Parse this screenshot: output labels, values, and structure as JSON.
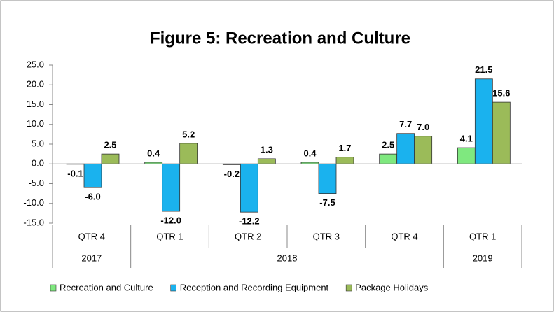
{
  "chart_data": {
    "type": "bar",
    "title": "Figure 5: Recreation and Culture",
    "categories": [
      "QTR 4",
      "QTR 1",
      "QTR 2",
      "QTR 3",
      "QTR 4",
      "QTR 1"
    ],
    "groups": [
      {
        "label": "2017",
        "count": 1
      },
      {
        "label": "2018",
        "count": 4
      },
      {
        "label": "2019",
        "count": 1
      }
    ],
    "series": [
      {
        "name": "Recreation and Culture",
        "color": "#7fe87f",
        "values": [
          -0.1,
          0.4,
          -0.2,
          0.4,
          2.5,
          4.1
        ],
        "value_labels": [
          "-0.1",
          "0.4",
          "-0.2",
          "0.4",
          "2.5",
          "4.1"
        ]
      },
      {
        "name": "Reception and Recording Equipment",
        "color": "#1ab2ee",
        "values": [
          -6.0,
          -12.0,
          -12.2,
          -7.5,
          7.7,
          21.5
        ],
        "value_labels": [
          "-6.0",
          "-12.0",
          "-12.2",
          "-7.5",
          "7.7",
          "21.5"
        ]
      },
      {
        "name": "Package Holidays",
        "color": "#9bbb59",
        "values": [
          2.5,
          5.2,
          1.3,
          1.7,
          7.0,
          15.6
        ],
        "value_labels": [
          "2.5",
          "5.2",
          "1.3",
          "1.7",
          "7.0",
          "15.6"
        ]
      }
    ],
    "ylim": [
      -15,
      25
    ],
    "yticks": [
      {
        "value": -15,
        "label": "-15.0"
      },
      {
        "value": -10,
        "label": "-10.0"
      },
      {
        "value": -5,
        "label": "-5.0"
      },
      {
        "value": 0,
        "label": "0.0"
      },
      {
        "value": 5,
        "label": "5.0"
      },
      {
        "value": 10,
        "label": "10.0"
      },
      {
        "value": 15,
        "label": "15.0"
      },
      {
        "value": 20,
        "label": "20.0"
      },
      {
        "value": 25,
        "label": "25.0"
      }
    ],
    "legend": "bottom"
  }
}
